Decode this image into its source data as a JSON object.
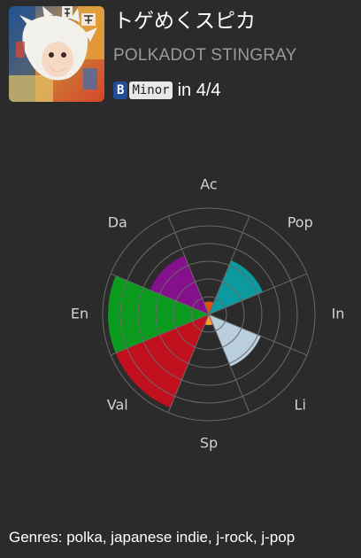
{
  "track": {
    "title": "トゲめくスピカ",
    "artist": "POLKADOT STINGRAY",
    "key": "B",
    "mode": "Minor",
    "time_signature": "in 4/4"
  },
  "album_art": {
    "icon": "album-cover-illustration"
  },
  "radar": {
    "axes": [
      "Ac",
      "Pop",
      "In",
      "Li",
      "Sp",
      "Val",
      "En",
      "Da"
    ],
    "values": [
      0.12,
      0.55,
      0.0,
      0.53,
      0.1,
      0.95,
      0.95,
      0.6
    ],
    "colors": [
      "#e05010",
      "#0a9aa0",
      "#ffffff",
      "#b9cfdd",
      "#ff9933",
      "#c0101e",
      "#0a9a1e",
      "#84108c"
    ],
    "rings": 6
  },
  "genres": {
    "text": "Genres: polka, japanese indie, j-rock, j-pop"
  }
}
